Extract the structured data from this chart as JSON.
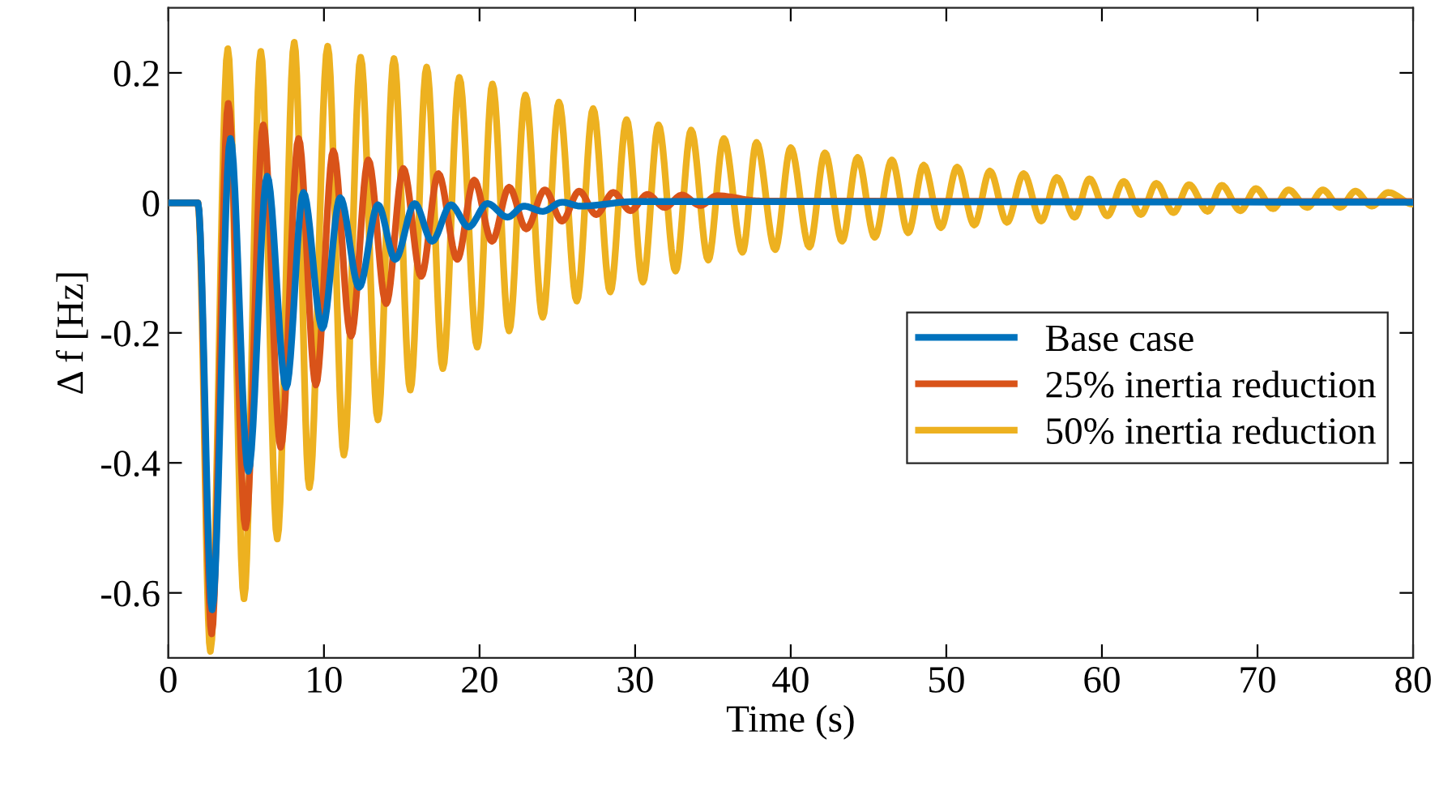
{
  "chart_data": {
    "type": "line",
    "xlabel": "Time (s)",
    "ylabel": "Δ f [Hz]",
    "xlim": [
      0,
      80
    ],
    "ylim": [
      -0.7,
      0.3
    ],
    "xticks": [
      0,
      10,
      20,
      30,
      40,
      50,
      60,
      70,
      80
    ],
    "yticks": [
      {
        "value": -0.6,
        "label": "-0.6"
      },
      {
        "value": -0.4,
        "label": "-0.4"
      },
      {
        "value": -0.2,
        "label": "-0.2"
      },
      0,
      0.2
    ],
    "grid": false,
    "legend": "bottom right",
    "line_style": "solid",
    "marker": "none",
    "series": [
      {
        "name": "Base case",
        "color": "#0072bd",
        "x": [
          0,
          1.9,
          2.81,
          3.99,
          5.14,
          6.35,
          7.57,
          8.68,
          9.9,
          11.04,
          12.26,
          13.47,
          14.58,
          15.83,
          16.95,
          18.16,
          19.3,
          20.5,
          21.8,
          22.85,
          24.06,
          25.3,
          26.5,
          30,
          80
        ],
        "values": [
          0,
          0,
          -0.626,
          0.099,
          -0.413,
          0.041,
          -0.284,
          0.016,
          -0.193,
          0.008,
          -0.13,
          -0.003,
          -0.087,
          -0.001,
          -0.059,
          -0.003,
          -0.037,
          -0.001,
          -0.022,
          -0.005,
          -0.013,
          0.001,
          -0.005,
          0.002,
          0.001
        ]
      },
      {
        "name": "25% inertia reduction",
        "color": "#d95319",
        "x": [
          0,
          1.9,
          2.78,
          3.85,
          4.96,
          6.1,
          7.22,
          8.37,
          9.48,
          10.6,
          11.74,
          12.85,
          14.0,
          15.1,
          16.25,
          17.35,
          18.57,
          19.65,
          20.8,
          21.9,
          23.0,
          24.2,
          25.3,
          26.4,
          27.5,
          28.6,
          29.7,
          30.8,
          31.9,
          33.0,
          34.2,
          35.25,
          38,
          80
        ],
        "values": [
          0,
          0,
          -0.663,
          0.153,
          -0.5,
          0.12,
          -0.376,
          0.099,
          -0.28,
          0.08,
          -0.205,
          0.066,
          -0.155,
          0.053,
          -0.113,
          0.045,
          -0.087,
          0.035,
          -0.059,
          0.024,
          -0.04,
          0.02,
          -0.028,
          0.018,
          -0.018,
          0.016,
          -0.012,
          0.013,
          -0.007,
          0.012,
          -0.004,
          0.011,
          0.003,
          0.002
        ]
      },
      {
        "name": "50% inertia reduction",
        "color": "#edb120",
        "x": [
          0,
          1.9,
          2.7,
          3.82,
          4.86,
          5.94,
          7.0,
          8.09,
          9.06,
          10.24,
          11.28,
          12.36,
          13.47,
          14.5,
          15.55,
          16.6,
          17.64,
          18.7,
          19.85,
          20.83,
          21.9,
          22.95,
          24.06,
          25.1,
          26.25,
          27.3,
          28.4,
          29.45,
          30.5,
          31.5,
          32.6,
          33.6,
          34.7,
          35.7,
          36.9,
          37.8,
          39.0,
          40.0,
          41.2,
          42.2,
          43.3,
          44.3,
          45.4,
          46.5,
          47.55,
          48.55,
          49.65,
          50.7,
          51.8,
          52.8,
          53.9,
          54.97,
          56.1,
          57.1,
          58.25,
          59.2,
          60.35,
          61.4,
          62.5,
          63.5,
          64.6,
          65.6,
          66.8,
          67.7,
          68.9,
          69.9,
          71.0,
          72.0,
          73.2,
          74.2,
          75.3,
          76.3,
          77.35,
          78.4,
          80
        ],
        "values": [
          0,
          0,
          -0.69,
          0.237,
          -0.609,
          0.233,
          -0.517,
          0.247,
          -0.438,
          0.241,
          -0.388,
          0.224,
          -0.334,
          0.222,
          -0.288,
          0.209,
          -0.255,
          0.193,
          -0.222,
          0.183,
          -0.197,
          0.166,
          -0.176,
          0.155,
          -0.151,
          0.145,
          -0.137,
          0.128,
          -0.122,
          0.12,
          -0.105,
          0.112,
          -0.088,
          0.099,
          -0.076,
          0.093,
          -0.072,
          0.085,
          -0.068,
          0.077,
          -0.059,
          0.07,
          -0.053,
          0.066,
          -0.046,
          0.058,
          -0.038,
          0.055,
          -0.034,
          0.049,
          -0.03,
          0.045,
          -0.028,
          0.039,
          -0.022,
          0.037,
          -0.02,
          0.033,
          -0.018,
          0.03,
          -0.015,
          0.028,
          -0.013,
          0.027,
          -0.012,
          0.022,
          -0.009,
          0.02,
          -0.007,
          0.02,
          -0.007,
          0.018,
          -0.005,
          0.016,
          -0.002
        ]
      }
    ]
  }
}
